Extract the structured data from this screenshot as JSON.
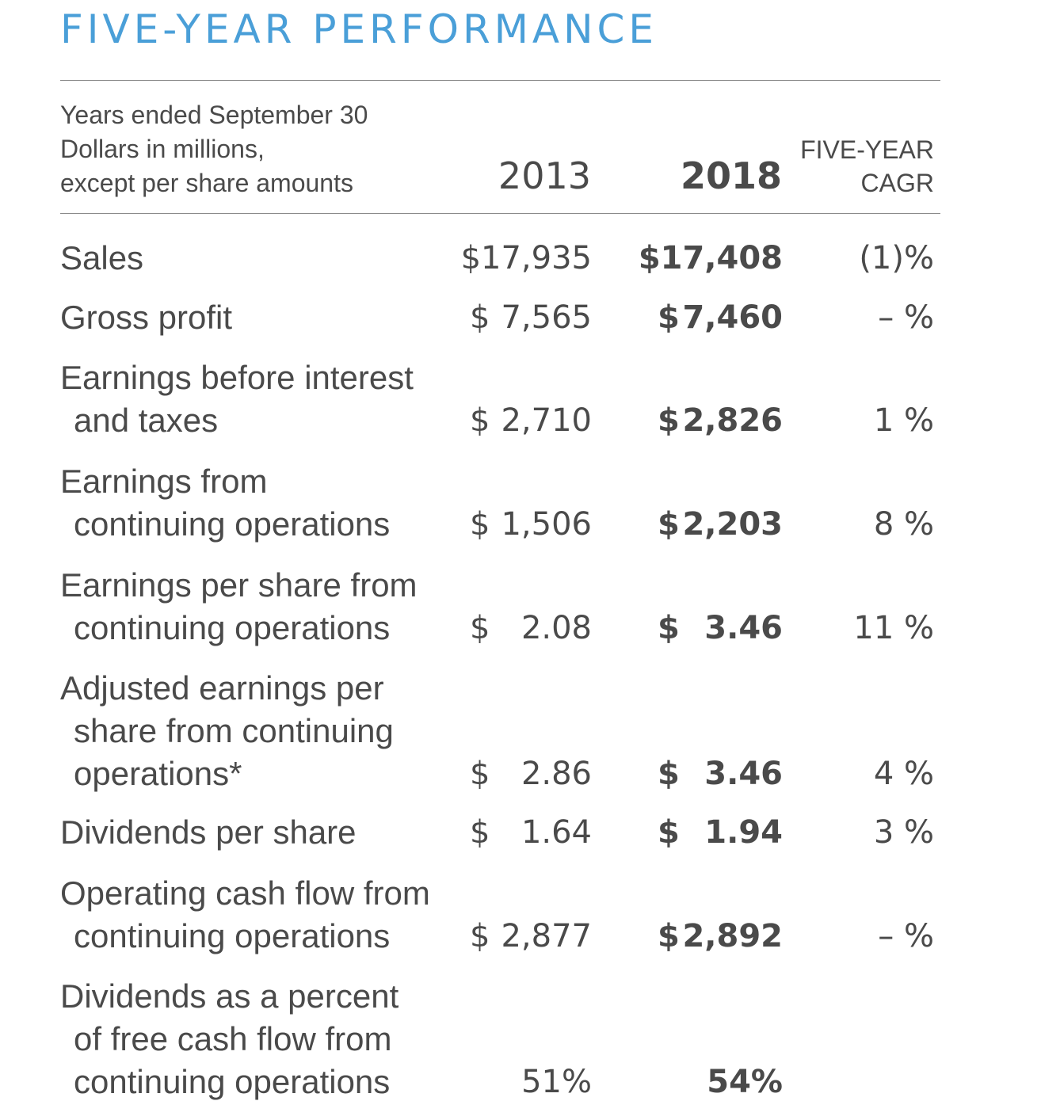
{
  "title": "FIVE-YEAR PERFORMANCE",
  "header": {
    "note_lines": [
      "Years ended September 30",
      "Dollars in millions,",
      "except per share amounts"
    ],
    "year_2013": "2013",
    "year_2018": "2018",
    "cagr_lines": [
      "FIVE-YEAR",
      "CAGR"
    ]
  },
  "rows": [
    {
      "label_lines": [
        "Sales"
      ],
      "cur_2013": "",
      "val_2013": "$17,935",
      "cur_2018": "",
      "val_2018": "$17,408",
      "cagr": "(1)%"
    },
    {
      "label_lines": [
        "Gross profit"
      ],
      "cur_2013": "$",
      "val_2013": "7,565",
      "cur_2018": "$",
      "val_2018": "7,460",
      "cagr": "– %"
    },
    {
      "label_lines": [
        "Earnings before interest",
        "and taxes"
      ],
      "cur_2013": "$",
      "val_2013": "2,710",
      "cur_2018": "$",
      "val_2018": "2,826",
      "cagr": "1 %"
    },
    {
      "label_lines": [
        "Earnings from",
        "continuing operations"
      ],
      "cur_2013": "$",
      "val_2013": "1,506",
      "cur_2018": "$",
      "val_2018": "2,203",
      "cagr": "8 %"
    },
    {
      "label_lines": [
        "Earnings per share from",
        "continuing operations"
      ],
      "cur_2013": "$",
      "val_2013": "2.08",
      "cur_2018": "$",
      "val_2018": "3.46",
      "cagr": "11 %"
    },
    {
      "label_lines": [
        "Adjusted earnings per",
        "share from continuing",
        "operations*"
      ],
      "cur_2013": "$",
      "val_2013": "2.86",
      "cur_2018": "$",
      "val_2018": "3.46",
      "cagr": "4 %"
    },
    {
      "label_lines": [
        "Dividends per share"
      ],
      "cur_2013": "$",
      "val_2013": "1.64",
      "cur_2018": "$",
      "val_2018": "1.94",
      "cagr": "3 %"
    },
    {
      "label_lines": [
        "Operating cash flow from",
        "continuing operations"
      ],
      "cur_2013": "$",
      "val_2013": "2,877",
      "cur_2018": "$",
      "val_2018": "2,892",
      "cagr": "– %"
    },
    {
      "label_lines": [
        "Dividends as a percent",
        "of free cash flow from",
        "continuing operations"
      ],
      "cur_2013": "",
      "val_2013": "51%",
      "cur_2018": "",
      "val_2018": "54%",
      "cagr": ""
    }
  ]
}
